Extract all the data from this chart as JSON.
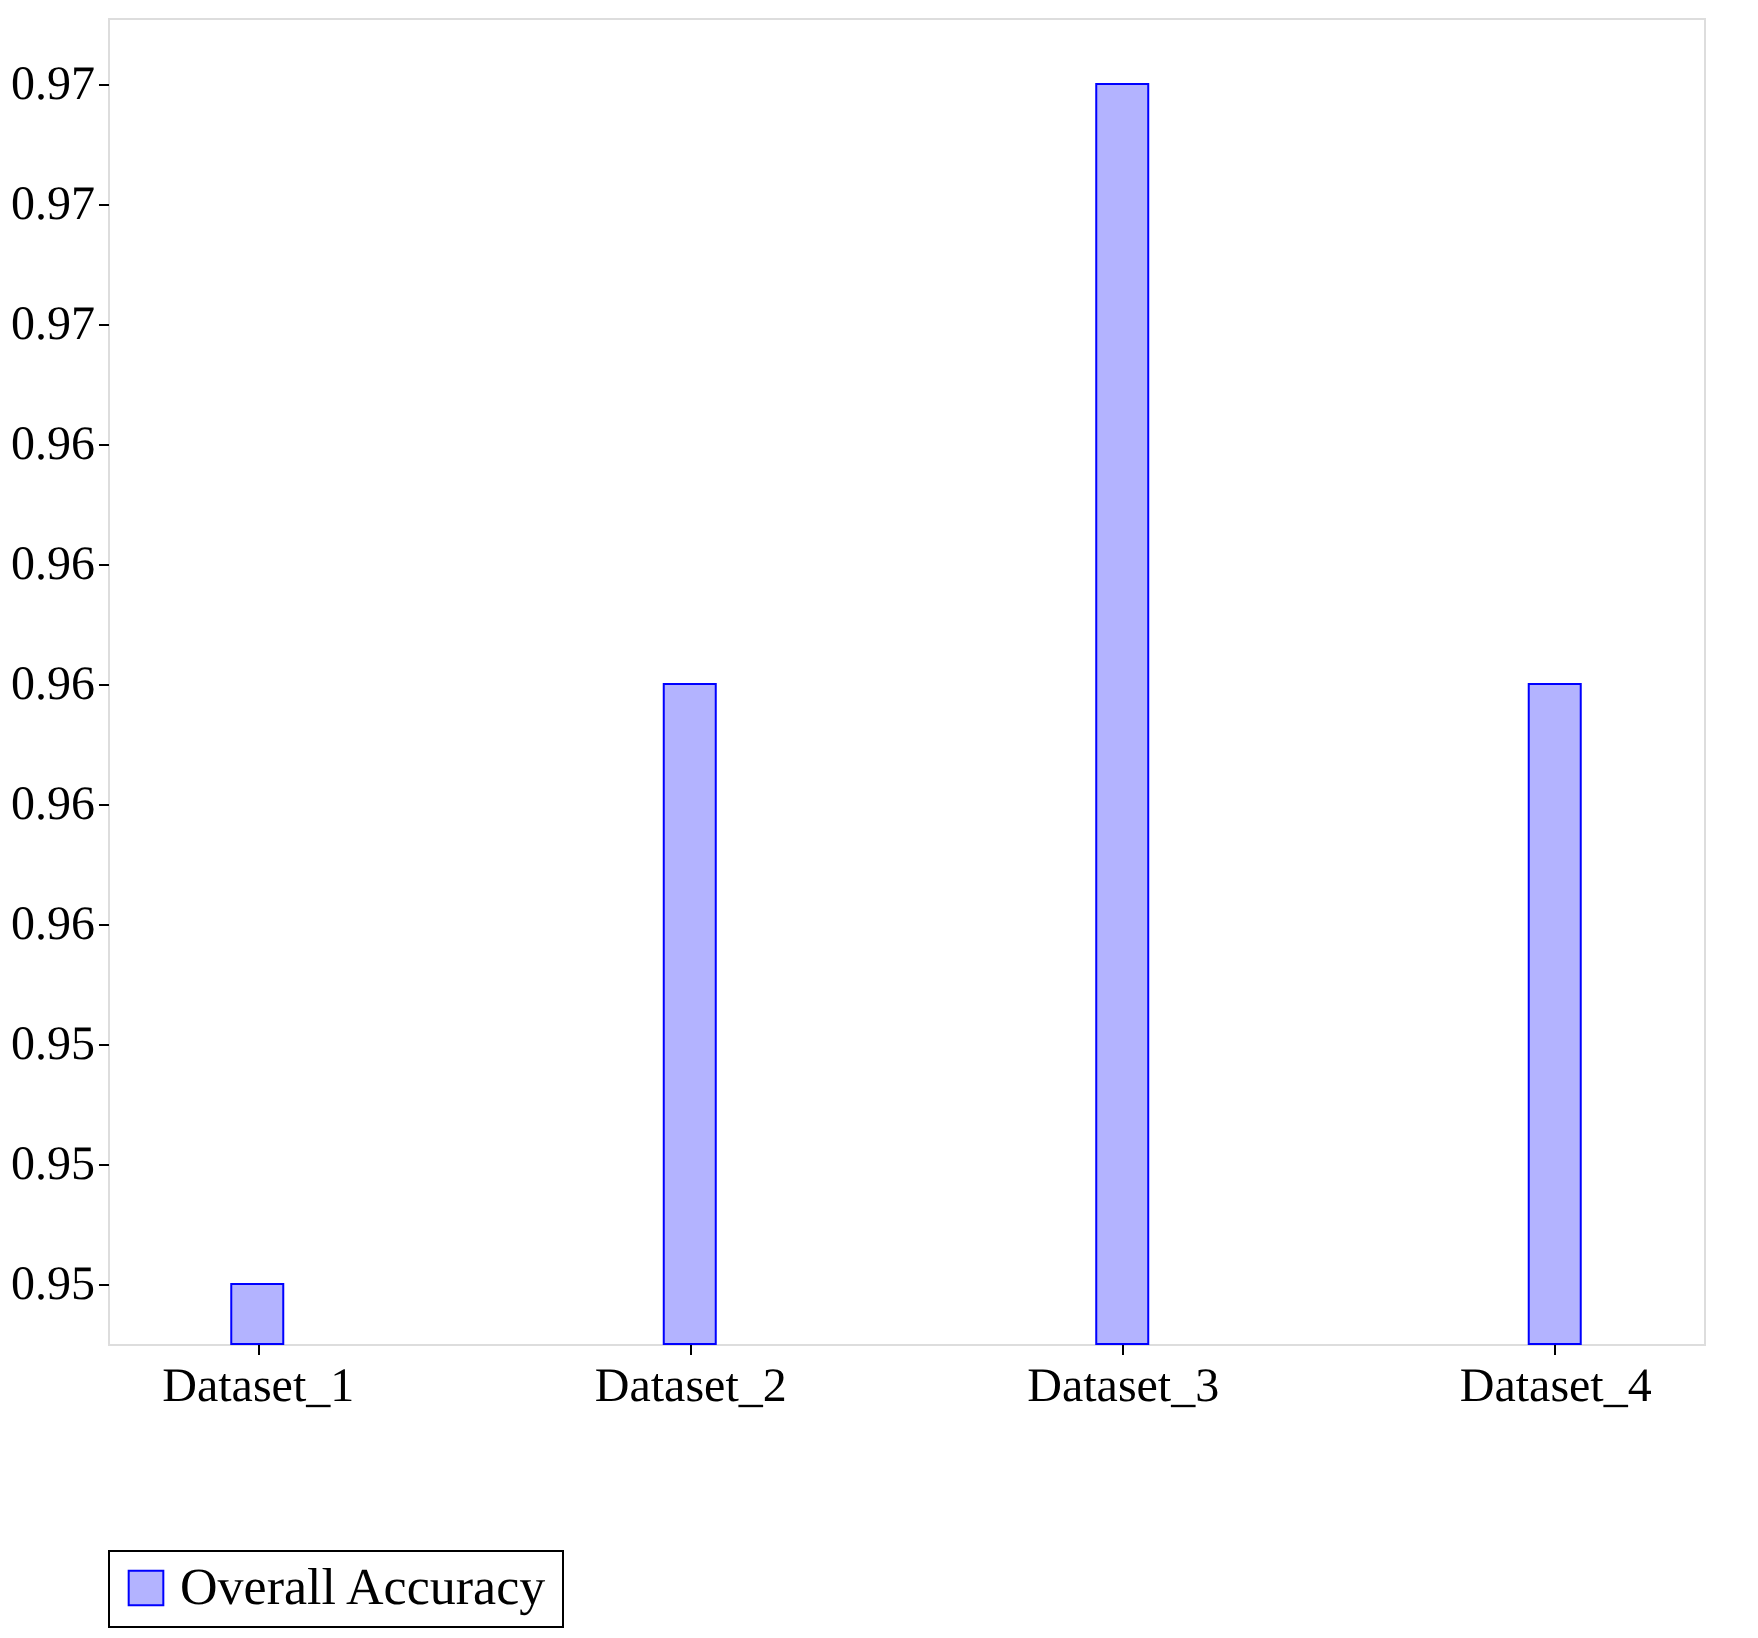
{
  "chart_data": {
    "type": "bar",
    "categories": [
      "Dataset_1",
      "Dataset_2",
      "Dataset_3",
      "Dataset_4"
    ],
    "series": [
      {
        "name": "Overall Accuracy",
        "color": "#b3b3ff",
        "values": [
          0.949,
          0.959,
          0.969,
          0.959
        ]
      }
    ],
    "ylim": [
      0.948,
      0.9701
    ],
    "yticks": [
      {
        "value": 0.949,
        "label": "0.95"
      },
      {
        "value": 0.951,
        "label": "0.95"
      },
      {
        "value": 0.953,
        "label": "0.95"
      },
      {
        "value": 0.955,
        "label": "0.96"
      },
      {
        "value": 0.957,
        "label": "0.96"
      },
      {
        "value": 0.959,
        "label": "0.96"
      },
      {
        "value": 0.961,
        "label": "0.96"
      },
      {
        "value": 0.963,
        "label": "0.96"
      },
      {
        "value": 0.965,
        "label": "0.97"
      },
      {
        "value": 0.967,
        "label": "0.97"
      },
      {
        "value": 0.969,
        "label": "0.97"
      }
    ],
    "legend": "bottom",
    "grid": false
  }
}
